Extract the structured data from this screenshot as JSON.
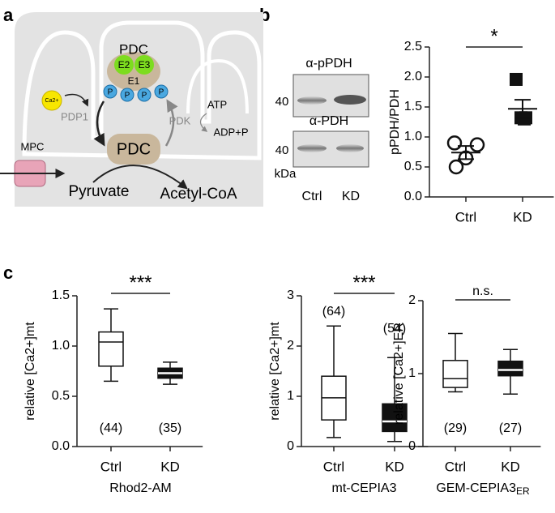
{
  "panel_labels": [
    "a",
    "b",
    "c"
  ],
  "diagram": {
    "labels": [
      "PDC",
      "E2",
      "E3",
      "E1",
      "P",
      "P",
      "P",
      "P",
      "Ca2+",
      "PDP1",
      "PDK",
      "ATP",
      "ADP+P",
      "PDC",
      "MPC",
      "Pyruvate",
      "Acetyl-CoA"
    ]
  },
  "blot": {
    "antibodies": [
      "α-pPDH",
      "α-PDH"
    ],
    "markers": [
      "40",
      "40"
    ],
    "unit": "kDa",
    "lanes": [
      "Ctrl",
      "KD"
    ]
  },
  "chart_data": [
    {
      "type": "dot",
      "ylabel": "pPDH/PDH",
      "categories": [
        "Ctrl",
        "KD"
      ],
      "points": [
        [
          0.9,
          0.87,
          0.65,
          0.5
        ],
        [
          1.96,
          1.32,
          1.3,
          1.32
        ]
      ],
      "means": [
        0.74,
        1.47
      ],
      "errors": [
        0.11,
        0.15
      ],
      "significance": "*",
      "ylim": [
        0,
        2.5
      ],
      "yticks": [
        {
          "value": 0,
          "label": "0.0"
        },
        0.5,
        {
          "value": 1,
          "label": "1.0"
        },
        1.5,
        {
          "value": 2,
          "label": "2.0"
        },
        2.5
      ]
    },
    {
      "type": "box",
      "ylabel": "relative [Ca2+]mt",
      "xlabel": "Rhod2-AM",
      "categories": [
        "Ctrl",
        "KD"
      ],
      "boxes": [
        {
          "whisker_low": 0.65,
          "q1": 0.8,
          "median": 1.04,
          "q3": 1.14,
          "whisker_high": 1.37
        },
        {
          "whisker_low": 0.62,
          "q1": 0.68,
          "median": 0.73,
          "q3": 0.78,
          "whisker_high": 0.84
        }
      ],
      "n_labels": [
        "(44)",
        "(35)"
      ],
      "significance": "***",
      "ylim": [
        0,
        1.5
      ],
      "yticks": [
        {
          "value": 0,
          "label": "0.0"
        },
        0.5,
        {
          "value": 1,
          "label": "1.0"
        },
        1.5
      ]
    },
    {
      "type": "box",
      "ylabel": "relative [Ca2+]mt",
      "xlabel": "mt-CEPIA3",
      "categories": [
        "Ctrl",
        "KD"
      ],
      "boxes": [
        {
          "whisker_low": 0.18,
          "q1": 0.53,
          "median": 0.97,
          "q3": 1.4,
          "whisker_high": 2.4
        },
        {
          "whisker_low": 0.1,
          "q1": 0.3,
          "median": 0.5,
          "q3": 0.85,
          "whisker_high": 1.77
        }
      ],
      "n_labels": [
        "(64)",
        "(54)"
      ],
      "significance": "***",
      "ylim": [
        0,
        3
      ],
      "yticks": [
        0,
        1,
        2,
        3
      ]
    },
    {
      "type": "box",
      "ylabel": "relative [Ca2+]ER",
      "xlabel": "GEM-CEPIA3",
      "xlabel_sub": "ER",
      "categories": [
        "Ctrl",
        "KD"
      ],
      "boxes": [
        {
          "whisker_low": 0.75,
          "q1": 0.81,
          "median": 0.93,
          "q3": 1.18,
          "whisker_high": 1.55
        },
        {
          "whisker_low": 0.72,
          "q1": 0.97,
          "median": 1.05,
          "q3": 1.17,
          "whisker_high": 1.33
        }
      ],
      "n_labels": [
        "(29)",
        "(27)"
      ],
      "significance": "n.s.",
      "ylim": [
        0,
        2
      ],
      "yticks": [
        0,
        1,
        2
      ]
    }
  ]
}
